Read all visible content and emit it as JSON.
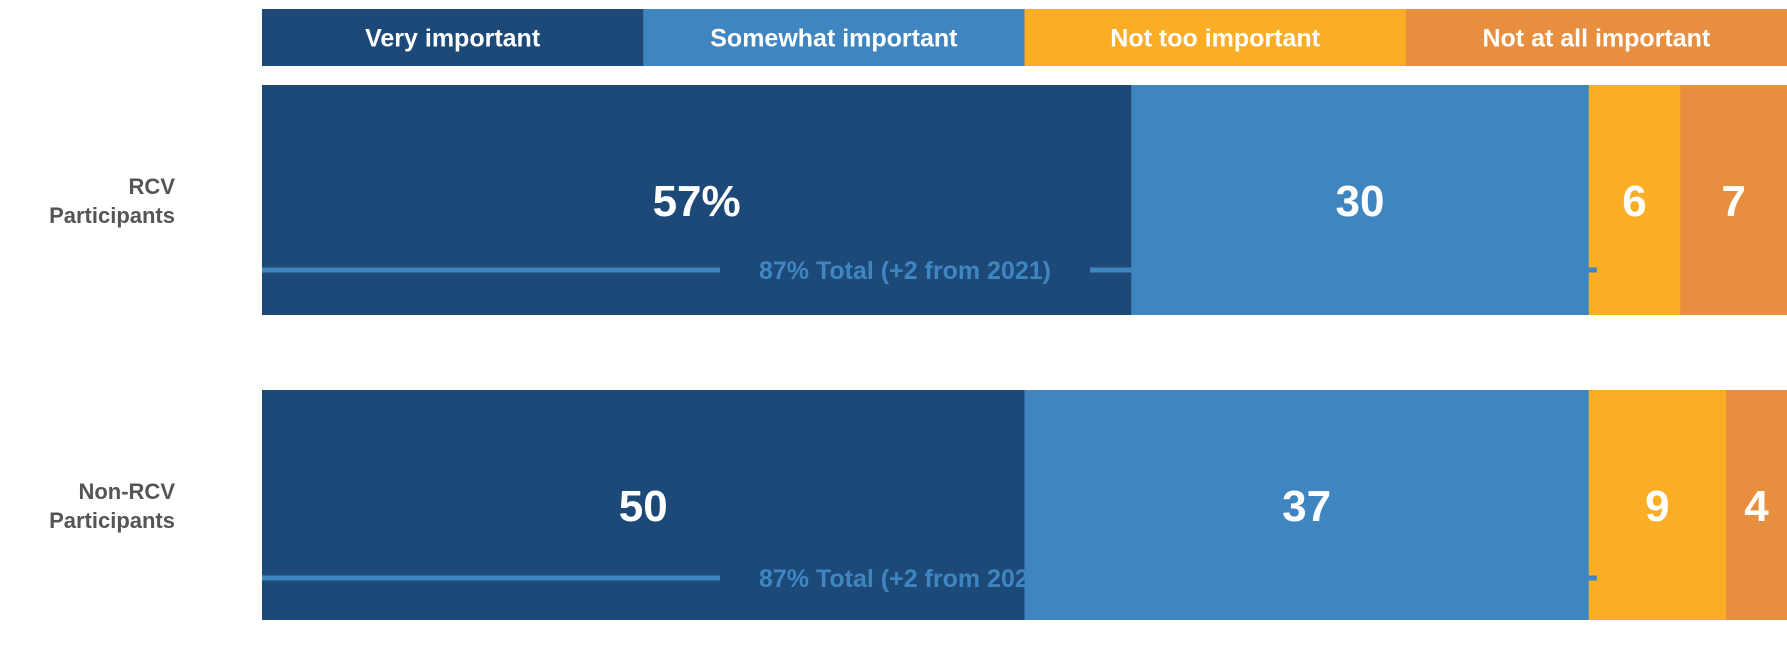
{
  "chart_data": {
    "type": "bar",
    "orientation": "horizontal",
    "stacked": true,
    "title": "",
    "xlabel": "",
    "ylabel": "",
    "xlim": [
      0,
      100
    ],
    "legend_position": "top",
    "grid": false,
    "categories": [
      "RCV Participants",
      "Non-RCV Participants"
    ],
    "category_lines": [
      [
        "RCV",
        "Participants"
      ],
      [
        "Non-RCV",
        "Participants"
      ]
    ],
    "series": [
      {
        "name": "Very important",
        "color": "#1c4978",
        "legend_text_color": "#ffffff",
        "values": [
          57,
          50
        ],
        "labels": [
          "57%",
          "50"
        ]
      },
      {
        "name": "Somewhat important",
        "color": "#3f86c0",
        "legend_text_color": "#ffffff",
        "values": [
          30,
          37
        ],
        "labels": [
          "30",
          "37"
        ]
      },
      {
        "name": "Not too important",
        "color": "#fbad26",
        "legend_text_color": "#ffffff",
        "values": [
          6,
          9
        ],
        "labels": [
          "6",
          "9"
        ]
      },
      {
        "name": "Not at all important",
        "color": "#e78f3f",
        "legend_text_color": "#ffffff",
        "values": [
          7,
          4
        ],
        "labels": [
          "7",
          "4"
        ]
      }
    ],
    "annotations": [
      {
        "text": "87% Total (+2 from 2021)",
        "category": "RCV Participants",
        "spans_series": [
          "Very important",
          "Somewhat important"
        ]
      },
      {
        "text": "87% Total (+2 from 2021)",
        "category": "Non-RCV Participants",
        "spans_series": [
          "Very important",
          "Somewhat important"
        ]
      }
    ],
    "annotation_color": "#3f86c0"
  }
}
